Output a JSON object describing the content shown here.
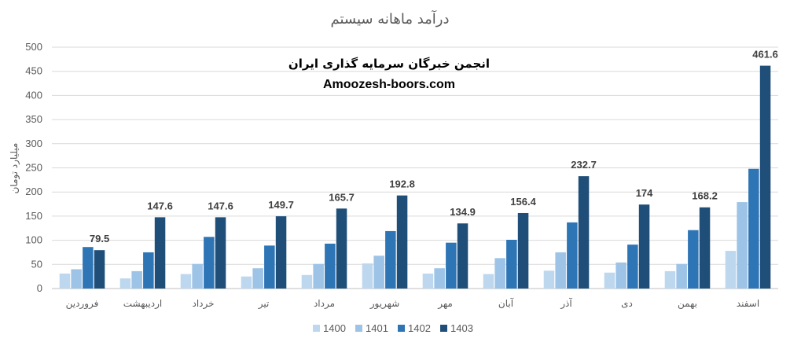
{
  "chart_data": {
    "type": "bar",
    "title": "درآمد ماهانه سیستم",
    "ylabel": "میلیارد تومان",
    "xlabel": "",
    "ylim": [
      0,
      500
    ],
    "yticks": [
      0,
      50,
      100,
      150,
      200,
      250,
      300,
      350,
      400,
      450,
      500
    ],
    "grid": true,
    "legend_position": "bottom",
    "categories": [
      "فروردین",
      "اردیبهشت",
      "خرداد",
      "تیر",
      "مرداد",
      "شهریور",
      "مهر",
      "آبان",
      "آذر",
      "دی",
      "بهمن",
      "اسفند"
    ],
    "series": [
      {
        "name": "1400",
        "color": "#bdd7ee",
        "values": [
          31,
          21,
          30,
          25,
          28,
          52,
          31,
          30,
          37,
          33,
          36,
          78
        ]
      },
      {
        "name": "1401",
        "color": "#9dc3e6",
        "values": [
          40,
          36,
          51,
          42,
          51,
          68,
          42,
          63,
          75,
          54,
          51,
          179
        ]
      },
      {
        "name": "1402",
        "color": "#2e75b6",
        "values": [
          86,
          75,
          107,
          89,
          93,
          119,
          95,
          101,
          137,
          91,
          121,
          248
        ]
      },
      {
        "name": "1403",
        "color": "#1f4e79",
        "values": [
          79.5,
          147.6,
          147.6,
          149.7,
          165.7,
          192.8,
          134.9,
          156.4,
          232.7,
          174,
          168.2,
          461.6
        ]
      }
    ],
    "data_labels": [
      "79.5",
      "147.6",
      "147.6",
      "149.7",
      "165.7",
      "192.8",
      "134.9",
      "156.4",
      "232.7",
      "174",
      "168.2",
      "461.6"
    ],
    "annotations": [
      "انجمن خبرگان سرمایه گذاری ایران",
      "Amoozesh-boors.com"
    ]
  }
}
